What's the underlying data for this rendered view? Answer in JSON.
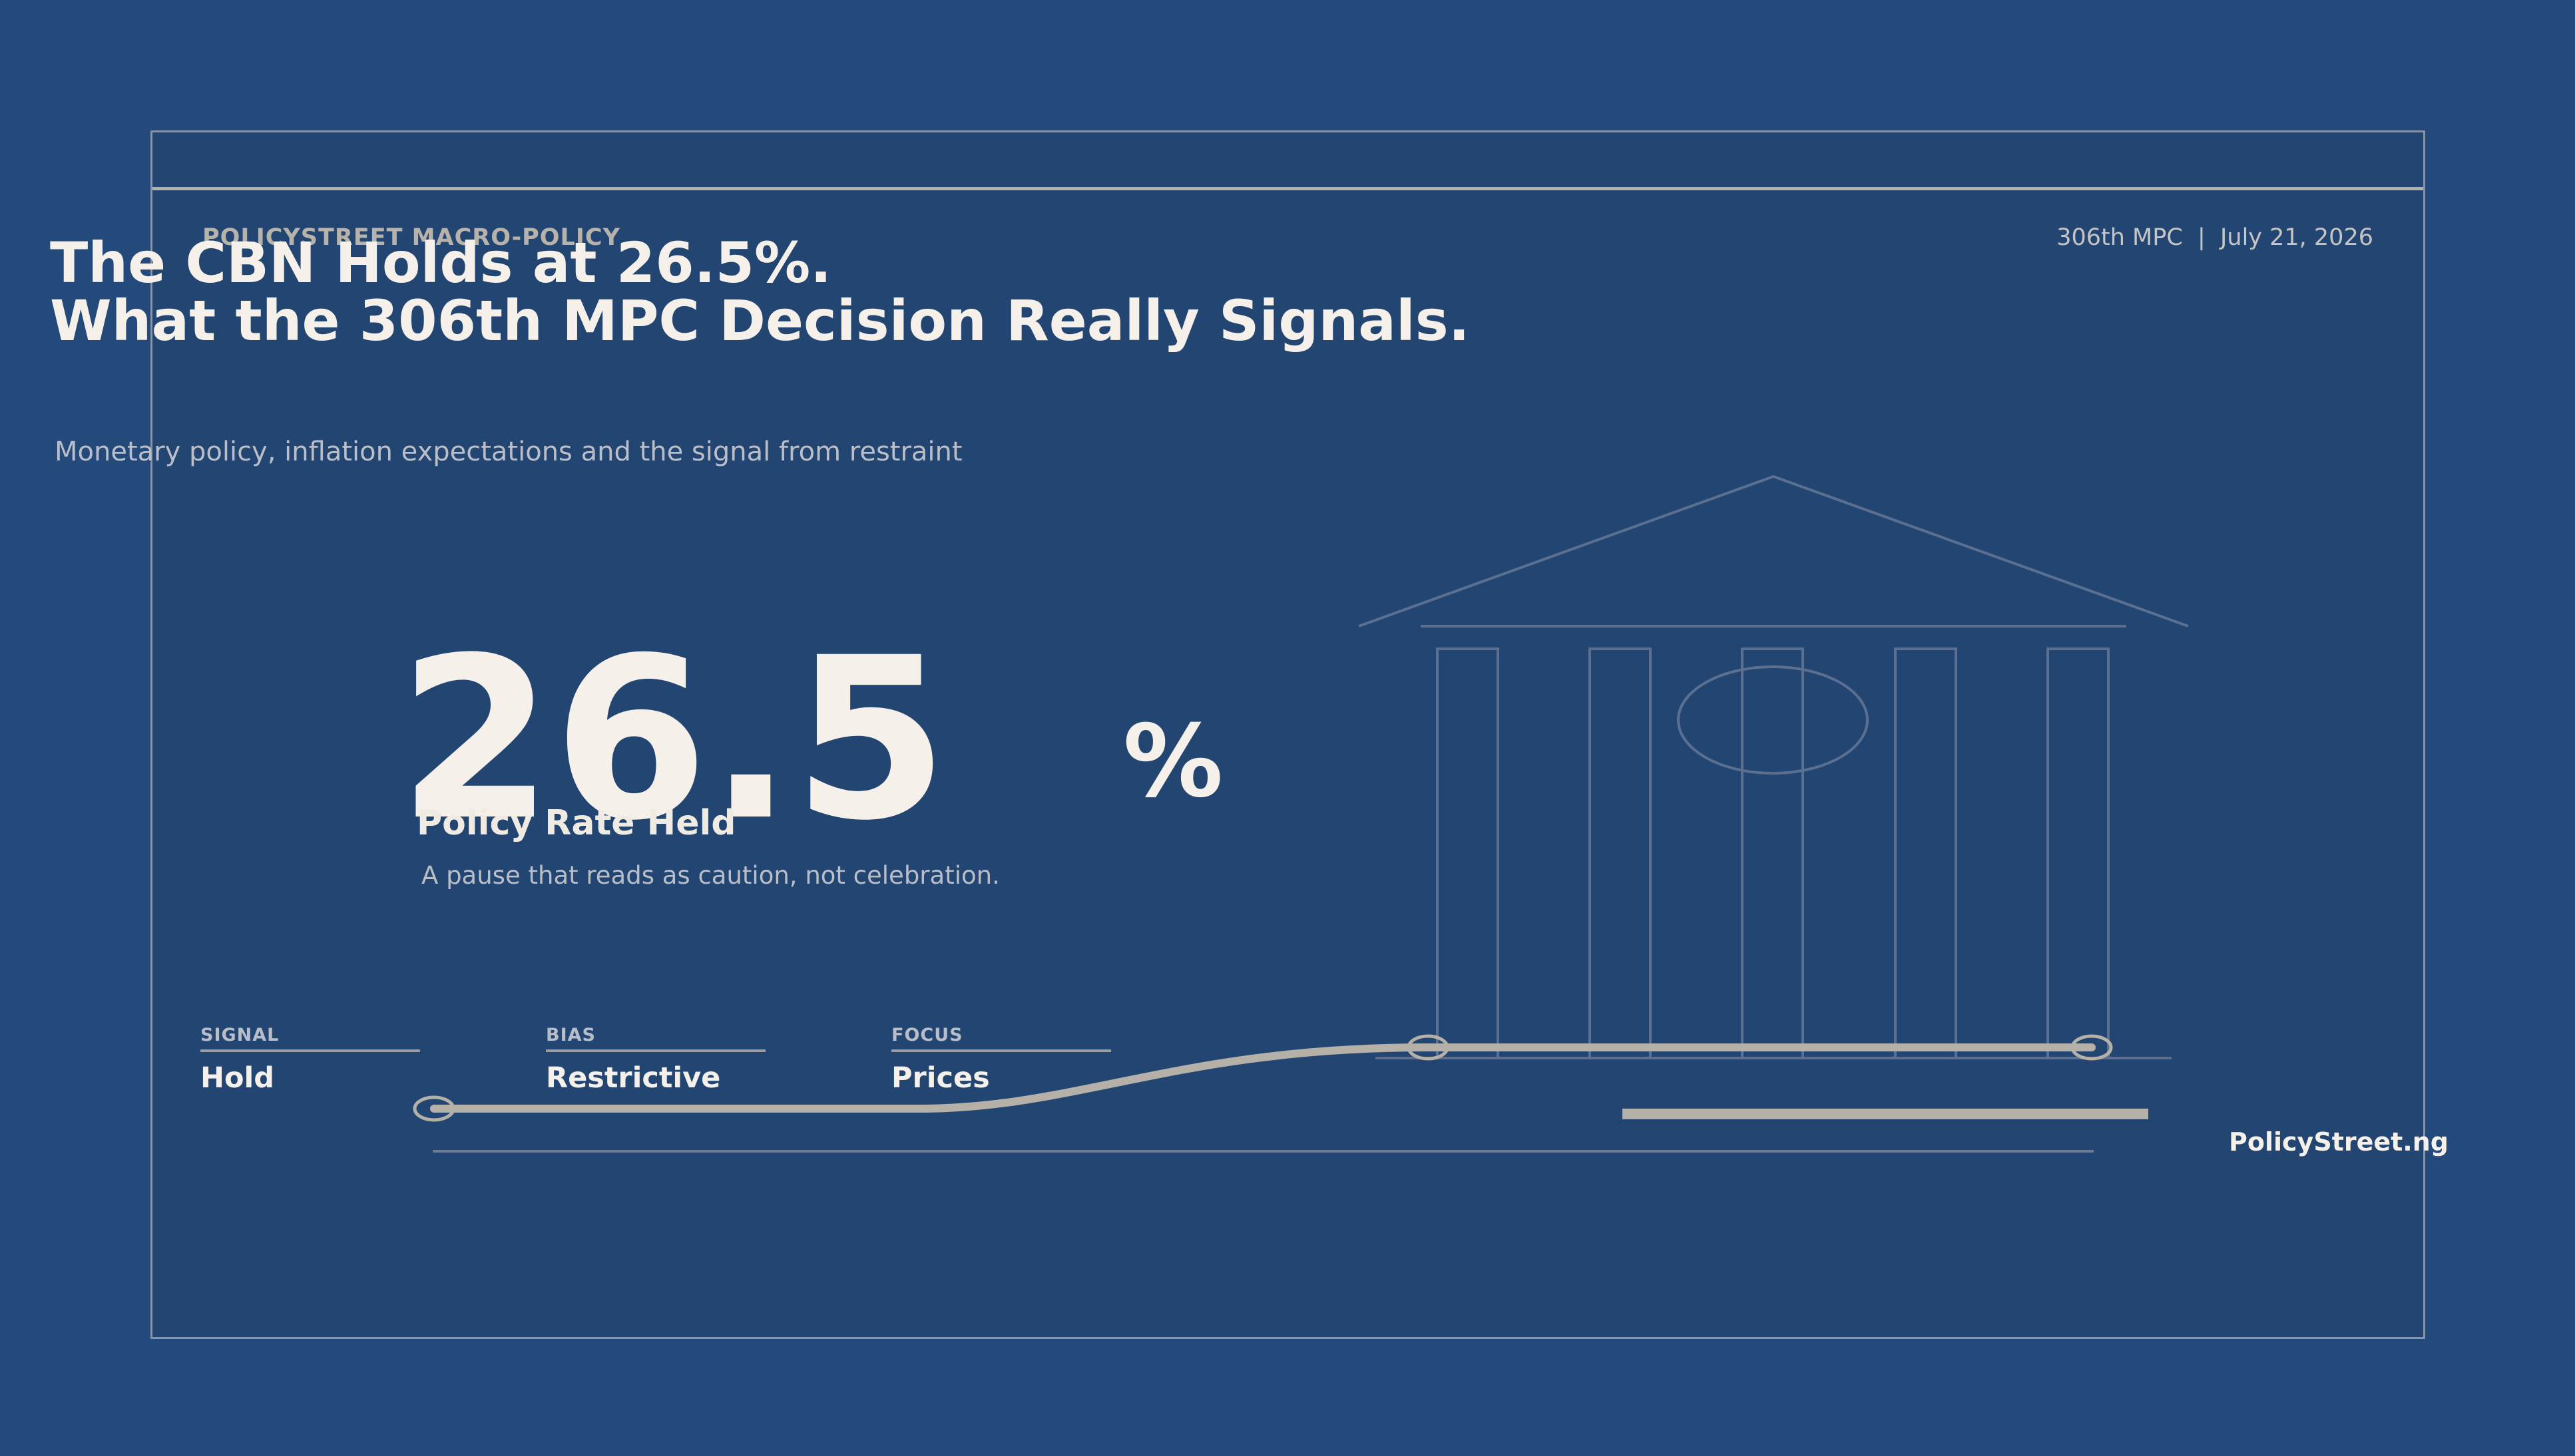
{
  "header": {
    "brand": "POLICYSTREET MACRO-POLICY",
    "meta": "306th MPC  |  July 21, 2026"
  },
  "headline": {
    "line1": "The CBN Holds at 26.5%.",
    "line2": "What the 306th MPC Decision Really Signals.",
    "subtitle": "Monetary policy, inflation expectations and the signal from restraint"
  },
  "rate": {
    "value": "26.5",
    "unit": "%",
    "label": "Policy Rate Held",
    "caption": "A pause that reads as caution, not celebration."
  },
  "stats": [
    {
      "label": "SIGNAL",
      "value": "Hold"
    },
    {
      "label": "BIAS",
      "value": "Restrictive"
    },
    {
      "label": "FOCUS",
      "value": "Prices"
    }
  ],
  "footer": {
    "site": "PolicyStreet.ng"
  },
  "colors": {
    "background": "#244a7c",
    "panel": "#234571",
    "text_light": "#f5f1ea",
    "accent_line": "#b5b1a8"
  },
  "icons": [
    "central-bank-building-icon",
    "rate-path-line-icon"
  ]
}
